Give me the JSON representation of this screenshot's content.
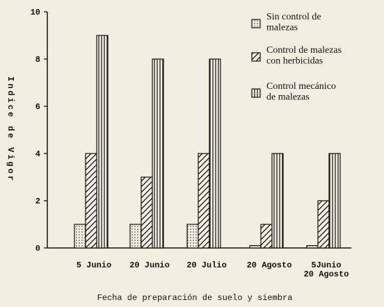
{
  "chart_data": {
    "type": "bar",
    "ylabel": "Indice de Vigor",
    "xlabel": "Fecha de preparación de suelo y siembra",
    "categories": [
      "5 Junio",
      "20 Junio",
      "20 Julio",
      "20 Agosto",
      "5Junio\n20 Agosto"
    ],
    "series": [
      {
        "name": "Sin control de\nmalezas",
        "color": "#111111",
        "pattern": "dots",
        "values": [
          1,
          1,
          1,
          0.1,
          0.1
        ]
      },
      {
        "name": "Control de malezas\ncon herbicidas",
        "color": "#111111",
        "pattern": "diagonal",
        "values": [
          4,
          3,
          4,
          1,
          2
        ]
      },
      {
        "name": "Control mecánico\nde malezas",
        "color": "#111111",
        "pattern": "vertical",
        "values": [
          9,
          8,
          8,
          4,
          4
        ]
      }
    ],
    "ylim": [
      0,
      10
    ],
    "yticks": [
      0,
      2,
      4,
      6,
      8,
      10
    ]
  }
}
